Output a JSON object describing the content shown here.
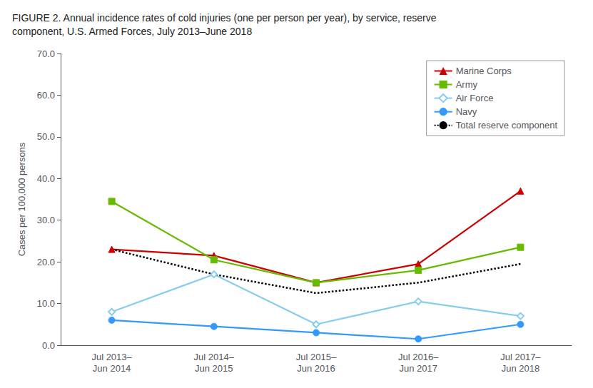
{
  "chart_data": {
    "type": "line",
    "title": "FIGURE 2. Annual incidence rates of cold injuries (one per person per year), by service, reserve\ncomponent, U.S. Armed Forces, July 2013–June 2018",
    "y_label": "Cases per 100,000 persons",
    "categories": [
      "Jul 2013–\nJun 2014",
      "Jul 2014–\nJun 2015",
      "Jul 2015–\nJun 2016",
      "Jul 2016–\nJun 2017",
      "Jul 2017–\nJun 2018"
    ],
    "series": [
      {
        "name": "Marine Corps",
        "color": "#cc0000",
        "marker": "triangle",
        "line_style": "solid",
        "values": [
          23.0,
          21.5,
          15.0,
          19.5,
          37.0
        ]
      },
      {
        "name": "Army",
        "color": "#66bb00",
        "marker": "square",
        "line_style": "solid",
        "values": [
          34.5,
          20.5,
          15.0,
          18.0,
          23.5
        ]
      },
      {
        "name": "Air Force",
        "color": "#88ccee",
        "marker": "open_diamond",
        "line_style": "solid",
        "values": [
          8.0,
          17.0,
          5.0,
          10.5,
          7.0
        ]
      },
      {
        "name": "Navy",
        "color": "#3399ff",
        "marker": "circle",
        "line_style": "solid",
        "values": [
          6.0,
          4.5,
          3.0,
          1.5,
          5.0
        ]
      },
      {
        "name": "Total reserve component",
        "color": "#000000",
        "marker": "none",
        "line_style": "dotted",
        "values": [
          23.0,
          17.0,
          12.5,
          15.0,
          19.5
        ]
      }
    ],
    "ylim": [
      0,
      70
    ],
    "yticks": [
      {
        "value": 0,
        "label": "0.0"
      },
      {
        "value": 10,
        "label": "10.0"
      },
      {
        "value": 20,
        "label": "20.0"
      },
      {
        "value": 30,
        "label": "30.0"
      },
      {
        "value": 40,
        "label": "40.0"
      },
      {
        "value": 50,
        "label": "50.0"
      },
      {
        "value": 60,
        "label": "60.0"
      },
      {
        "value": 70,
        "label": "70.0"
      }
    ],
    "grid": false,
    "legend": "upper right"
  }
}
